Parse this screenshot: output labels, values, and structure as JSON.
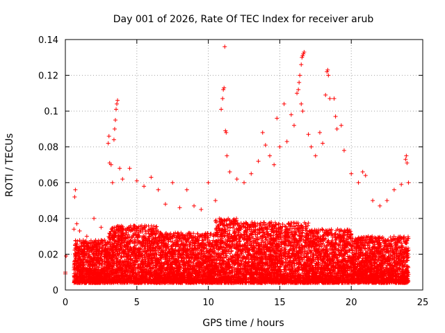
{
  "chart_data": {
    "type": "scatter",
    "title": "Day 001 of 2026, Rate Of TEC Index for receiver arub",
    "xlabel": "GPS time / hours",
    "ylabel": "ROTI / TECUs",
    "xlim": [
      0,
      25
    ],
    "ylim": [
      0,
      0.14
    ],
    "xticks": [
      0,
      5,
      10,
      15,
      20,
      25
    ],
    "xtick_labels": [
      "0",
      "5",
      "10",
      "15",
      "20",
      "25"
    ],
    "yticks": [
      0,
      0.02,
      0.04,
      0.06,
      0.08,
      0.1,
      0.12,
      0.14
    ],
    "ytick_labels": [
      "0",
      "0.02",
      "0.04",
      "0.06",
      "0.08",
      "0.1",
      "0.12",
      "0.14"
    ],
    "grid": true,
    "marker": "plus",
    "color": "#ff0000",
    "series": [
      {
        "points": [
          [
            0.0,
            0.009
          ],
          [
            0.0,
            0.01
          ],
          [
            0.05,
            0.019
          ],
          [
            0.6,
            0.034
          ],
          [
            0.65,
            0.052
          ],
          [
            0.7,
            0.056
          ],
          [
            0.8,
            0.037
          ],
          [
            1.0,
            0.033
          ],
          [
            1.5,
            0.03
          ],
          [
            2.0,
            0.04
          ],
          [
            2.5,
            0.035
          ],
          [
            3.0,
            0.082
          ],
          [
            3.05,
            0.086
          ],
          [
            3.1,
            0.071
          ],
          [
            3.2,
            0.07
          ],
          [
            3.3,
            0.06
          ],
          [
            3.4,
            0.084
          ],
          [
            3.45,
            0.09
          ],
          [
            3.5,
            0.095
          ],
          [
            3.55,
            0.101
          ],
          [
            3.6,
            0.104
          ],
          [
            3.65,
            0.106
          ],
          [
            3.8,
            0.068
          ],
          [
            4.0,
            0.062
          ],
          [
            4.5,
            0.068
          ],
          [
            5.0,
            0.061
          ],
          [
            5.5,
            0.058
          ],
          [
            6.0,
            0.063
          ],
          [
            6.5,
            0.056
          ],
          [
            7.0,
            0.048
          ],
          [
            7.5,
            0.06
          ],
          [
            8.0,
            0.046
          ],
          [
            8.5,
            0.056
          ],
          [
            9.0,
            0.047
          ],
          [
            9.5,
            0.045
          ],
          [
            10.0,
            0.06
          ],
          [
            10.5,
            0.05
          ],
          [
            10.9,
            0.101
          ],
          [
            11.0,
            0.107
          ],
          [
            11.05,
            0.112
          ],
          [
            11.1,
            0.113
          ],
          [
            11.15,
            0.136
          ],
          [
            11.2,
            0.089
          ],
          [
            11.25,
            0.088
          ],
          [
            11.3,
            0.075
          ],
          [
            11.5,
            0.066
          ],
          [
            12.0,
            0.062
          ],
          [
            12.5,
            0.06
          ],
          [
            13.0,
            0.065
          ],
          [
            13.5,
            0.072
          ],
          [
            13.8,
            0.088
          ],
          [
            14.0,
            0.081
          ],
          [
            14.3,
            0.075
          ],
          [
            14.6,
            0.07
          ],
          [
            14.8,
            0.096
          ],
          [
            15.0,
            0.08
          ],
          [
            15.3,
            0.104
          ],
          [
            15.5,
            0.083
          ],
          [
            15.8,
            0.098
          ],
          [
            16.0,
            0.092
          ],
          [
            16.2,
            0.11
          ],
          [
            16.3,
            0.112
          ],
          [
            16.35,
            0.116
          ],
          [
            16.4,
            0.12
          ],
          [
            16.5,
            0.126
          ],
          [
            16.55,
            0.13
          ],
          [
            16.6,
            0.131
          ],
          [
            16.65,
            0.132
          ],
          [
            16.7,
            0.133
          ],
          [
            16.5,
            0.104
          ],
          [
            16.6,
            0.1
          ],
          [
            17.0,
            0.087
          ],
          [
            17.2,
            0.08
          ],
          [
            17.5,
            0.075
          ],
          [
            17.8,
            0.088
          ],
          [
            18.0,
            0.082
          ],
          [
            18.2,
            0.109
          ],
          [
            18.3,
            0.122
          ],
          [
            18.35,
            0.123
          ],
          [
            18.4,
            0.12
          ],
          [
            18.5,
            0.107
          ],
          [
            18.8,
            0.107
          ],
          [
            18.9,
            0.097
          ],
          [
            19.0,
            0.09
          ],
          [
            19.3,
            0.092
          ],
          [
            19.5,
            0.078
          ],
          [
            20.0,
            0.065
          ],
          [
            20.5,
            0.06
          ],
          [
            20.8,
            0.066
          ],
          [
            21.0,
            0.064
          ],
          [
            21.5,
            0.05
          ],
          [
            22.0,
            0.047
          ],
          [
            22.5,
            0.05
          ],
          [
            23.0,
            0.056
          ],
          [
            23.5,
            0.059
          ],
          [
            23.8,
            0.073
          ],
          [
            23.85,
            0.075
          ],
          [
            23.9,
            0.071
          ],
          [
            24.0,
            0.06
          ]
        ]
      }
    ],
    "dense_band": [
      {
        "x0": 0.6,
        "x1": 3.0,
        "lo": 0.004,
        "hi": 0.028
      },
      {
        "x0": 3.0,
        "x1": 6.5,
        "lo": 0.004,
        "hi": 0.036
      },
      {
        "x0": 6.5,
        "x1": 10.5,
        "lo": 0.004,
        "hi": 0.032
      },
      {
        "x0": 10.5,
        "x1": 12.0,
        "lo": 0.004,
        "hi": 0.04
      },
      {
        "x0": 12.0,
        "x1": 17.0,
        "lo": 0.004,
        "hi": 0.038
      },
      {
        "x0": 17.0,
        "x1": 20.0,
        "lo": 0.004,
        "hi": 0.034
      },
      {
        "x0": 20.0,
        "x1": 24.0,
        "lo": 0.004,
        "hi": 0.03
      }
    ]
  }
}
